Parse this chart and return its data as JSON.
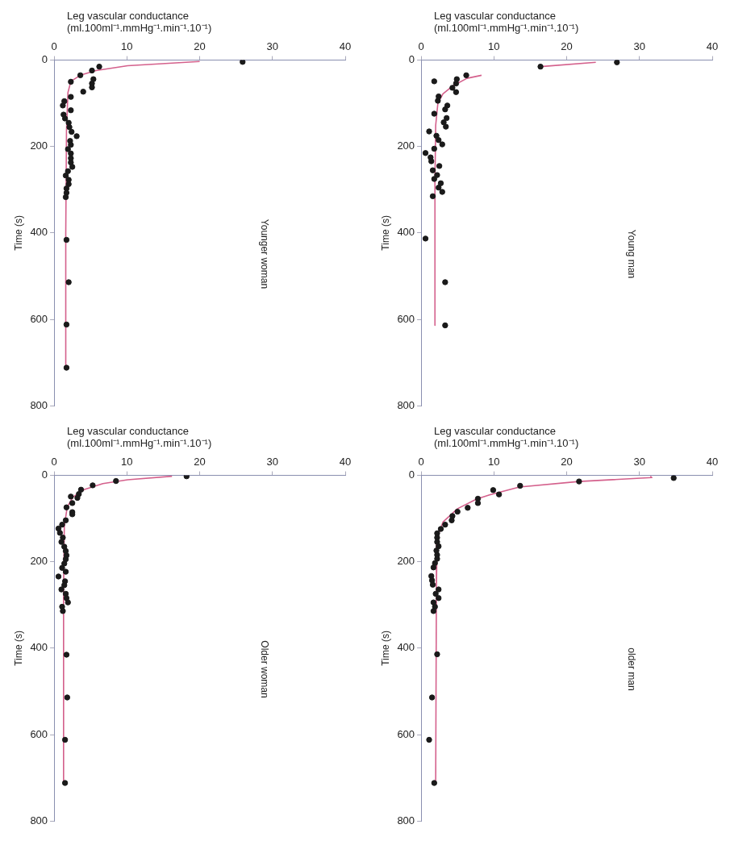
{
  "chart_data": [
    {
      "type": "scatter",
      "title": "Younger woman",
      "ylabel": "Time (s)",
      "xlabel": "Leg vascular conductance (ml.100ml⁻¹.mmHg⁻¹.min⁻¹.10⁻¹)",
      "ylim": [
        800,
        0
      ],
      "yticks": [
        0,
        200,
        400,
        600,
        800
      ],
      "xlim": [
        0,
        40
      ],
      "xticks": [
        0,
        10,
        20,
        30,
        40
      ],
      "grid": false,
      "legend": false,
      "marker": "circle",
      "series": [
        {
          "type": "scatter",
          "color": "#1a1a1a",
          "values": [
            4,
            15,
            24,
            35,
            44,
            50,
            54,
            63,
            73,
            85,
            95,
            105,
            116,
            126,
            135,
            145,
            155,
            166,
            176,
            187,
            196,
            206,
            216,
            227,
            237,
            247,
            257,
            267,
            277,
            287,
            297,
            307,
            317,
            416,
            514,
            612,
            712
          ],
          "x": [
            25.9,
            6.2,
            5.2,
            3.6,
            5.4,
            2.3,
            5.2,
            5.2,
            4.0,
            2.3,
            1.4,
            1.2,
            2.3,
            1.3,
            1.5,
            2.0,
            2.1,
            2.4,
            3.1,
            2.2,
            2.3,
            1.9,
            2.3,
            2.3,
            2.3,
            2.5,
            1.9,
            1.6,
            2.0,
            2.0,
            1.7,
            1.7,
            1.6,
            1.7,
            2.0,
            1.7,
            1.7
          ]
        },
        {
          "type": "line",
          "marker": "none",
          "color": "#d4608c",
          "values": [
            3,
            13,
            24,
            35,
            49,
            75,
            163,
            400,
            712
          ],
          "x": [
            20,
            10.1,
            5.75,
            3.6,
            2.3,
            1.9,
            1.7,
            1.6,
            1.6
          ]
        }
      ]
    },
    {
      "type": "scatter",
      "title": "Young man",
      "ylabel": "Time (s)",
      "xlabel": "Leg vascular conductance (ml.100ml⁻¹.mmHg⁻¹.min⁻¹.10⁻¹)",
      "ylim": [
        800,
        0
      ],
      "yticks": [
        0,
        200,
        400,
        600,
        800
      ],
      "xlim": [
        0,
        40
      ],
      "xticks": [
        0,
        10,
        20,
        30,
        40
      ],
      "grid": false,
      "legend": false,
      "marker": "circle",
      "series": [
        {
          "type": "scatter",
          "color": "#1a1a1a",
          "values": [
            5,
            15,
            35,
            44,
            49,
            54,
            64,
            74,
            84,
            94,
            105,
            114,
            124,
            134,
            144,
            154,
            165,
            175,
            185,
            195,
            205,
            215,
            225,
            234,
            245,
            255,
            266,
            275,
            285,
            295,
            305,
            315,
            413,
            514,
            614
          ],
          "x": [
            26.9,
            16.4,
            6.2,
            4.9,
            1.8,
            4.8,
            4.3,
            4.8,
            2.4,
            2.3,
            3.6,
            3.3,
            1.8,
            3.5,
            3.1,
            3.4,
            1.1,
            2.1,
            2.4,
            2.9,
            1.8,
            0.6,
            1.3,
            1.4,
            2.5,
            1.6,
            2.2,
            1.8,
            2.7,
            2.4,
            2.9,
            1.6,
            0.6,
            3.3,
            3.3
          ]
        },
        {
          "type": "line",
          "marker": "none",
          "color": "#d4608c",
          "values": [
            5,
            15,
            null,
            35,
            42,
            59,
            78,
            100,
            151,
            278,
            614
          ],
          "x": [
            24,
            16.4,
            null,
            8.3,
            6.3,
            4.4,
            3.0,
            2.3,
            2.0,
            1.9,
            1.9
          ]
        }
      ]
    },
    {
      "type": "scatter",
      "title": "Older woman",
      "ylabel": "Time (s)",
      "xlabel": "Leg vascular conductance (ml.100ml⁻¹.mmHg⁻¹.min⁻¹.10⁻¹)",
      "ylim": [
        800,
        0
      ],
      "yticks": [
        0,
        200,
        400,
        600,
        800
      ],
      "xlim": [
        0,
        40
      ],
      "xticks": [
        0,
        10,
        20,
        30,
        40
      ],
      "grid": false,
      "legend": false,
      "marker": "circle",
      "series": [
        {
          "type": "scatter",
          "color": "#1a1a1a",
          "values": [
            2,
            13,
            23,
            33,
            43,
            49,
            52,
            64,
            74,
            85,
            90,
            104,
            114,
            123,
            133,
            144,
            154,
            165,
            175,
            185,
            194,
            204,
            214,
            223,
            234,
            245,
            254,
            264,
            274,
            284,
            294,
            304,
            314,
            415,
            514,
            612,
            712
          ],
          "x": [
            18.2,
            8.5,
            5.3,
            3.7,
            3.4,
            2.3,
            3.2,
            2.5,
            1.7,
            2.5,
            2.5,
            1.6,
            1.1,
            0.6,
            0.8,
            1.2,
            1.0,
            1.4,
            1.6,
            1.7,
            1.6,
            1.4,
            1.1,
            1.6,
            0.6,
            1.5,
            1.4,
            1.0,
            1.6,
            1.7,
            1.9,
            1.1,
            1.2,
            1.7,
            1.8,
            1.5,
            1.5
          ]
        },
        {
          "type": "line",
          "marker": "none",
          "color": "#d4608c",
          "values": [
            2,
            10,
            19,
            33,
            50,
            73,
            118,
            260,
            712
          ],
          "x": [
            16.2,
            10.1,
            6.7,
            4.1,
            2.6,
            1.8,
            1.4,
            1.3,
            1.3
          ]
        }
      ]
    },
    {
      "type": "scatter",
      "title": "older man",
      "ylabel": "Time (s)",
      "xlabel": "Leg vascular conductance (ml.100ml⁻¹.mmHg⁻¹.min⁻¹.10⁻¹)",
      "ylim": [
        800,
        0
      ],
      "yticks": [
        0,
        200,
        400,
        600,
        800
      ],
      "xlim": [
        0,
        40
      ],
      "xticks": [
        0,
        10,
        20,
        30,
        40
      ],
      "grid": false,
      "legend": false,
      "marker": "circle",
      "series": [
        {
          "type": "scatter",
          "color": "#1a1a1a",
          "values": [
            6,
            14,
            24,
            34,
            44,
            54,
            64,
            75,
            84,
            94,
            104,
            114,
            124,
            134,
            144,
            154,
            164,
            174,
            184,
            193,
            203,
            213,
            233,
            243,
            253,
            264,
            274,
            284,
            294,
            304,
            314,
            414,
            514,
            612,
            712
          ],
          "x": [
            34.7,
            21.7,
            13.6,
            9.9,
            10.7,
            7.8,
            7.8,
            6.4,
            5.0,
            4.3,
            4.2,
            3.3,
            2.7,
            2.2,
            2.2,
            2.2,
            2.4,
            2.1,
            2.2,
            2.2,
            1.9,
            1.7,
            1.4,
            1.5,
            1.6,
            2.4,
            2.0,
            2.4,
            1.7,
            1.9,
            1.7,
            2.2,
            1.5,
            1.1,
            1.8
          ]
        },
        {
          "type": "line",
          "marker": "none",
          "color": "#d4608c",
          "values": [
            2,
            5,
            14,
            27,
            45,
            55,
            77,
            108,
            145,
            257,
            712
          ],
          "x": [
            31.5,
            31.7,
            21.7,
            13.5,
            9.4,
            7.6,
            5.0,
            3.0,
            2.2,
            2.1,
            2.0
          ]
        }
      ]
    }
  ]
}
